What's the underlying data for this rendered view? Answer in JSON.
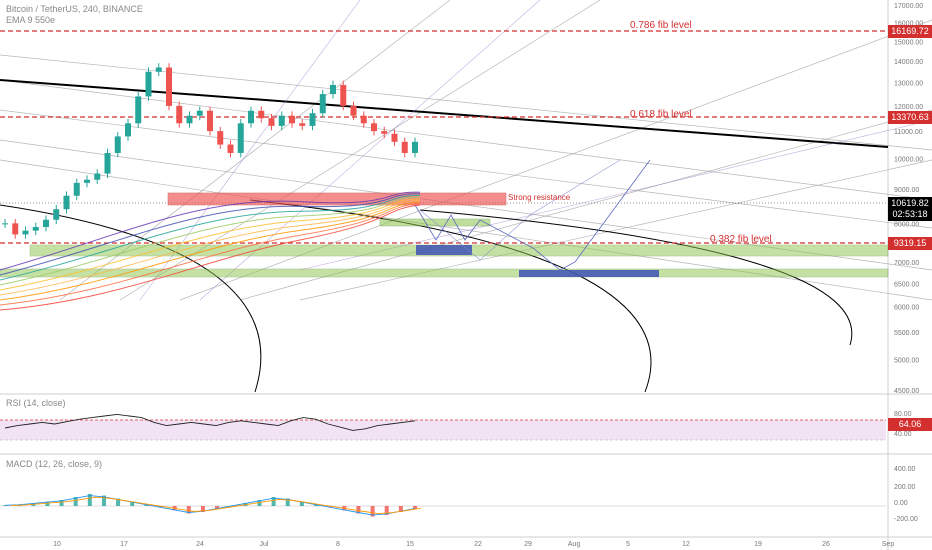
{
  "header": {
    "symbol_line": "Bitcoin / TetherUS, 240, BINANCE",
    "ma_line": "EMA 9 550e"
  },
  "annotations": {
    "fib_786": "0.786 fib level",
    "fib_618": "0.618 fib level",
    "fib_382": "0.382 fib level",
    "strong_resistance": "Strong resistance"
  },
  "price_tags": {
    "fib_786": "16169.72",
    "fib_618": "13370.63",
    "current_price": "10619.82",
    "countdown": "02:53:18",
    "fib_382": "9319.15",
    "rsi_value": "64.06"
  },
  "indicators": {
    "rsi_label": "RSI (14, close)",
    "macd_label": "MACD (12, 26, close, 9)"
  },
  "colors": {
    "fib_line": "#d32f2f",
    "resistance_zone": "#ef5350",
    "support_zone": "#8bc34a",
    "target_box": "#3f51b5",
    "rsi_band": "#e1bee7",
    "candle_up": "#26a69a",
    "candle_down": "#ef5350",
    "current_price_tag": "#000000"
  },
  "chart_data": [
    {
      "type": "candlestick",
      "title": "Bitcoin / TetherUS, 240, BINANCE",
      "y_axis_ticks": [
        "17000.00",
        "16000.00",
        "15000.00",
        "14000.00",
        "13000.00",
        "12000.00",
        "11000.00",
        "10000.00",
        "9000.00",
        "8000.00",
        "7500.00",
        "7000.00",
        "6500.00",
        "6000.00",
        "5500.00",
        "5000.00",
        "4500.00"
      ],
      "x_axis_ticks": [
        "10",
        "17",
        "24",
        "Jul",
        "8",
        "15",
        "22",
        "29",
        "Aug",
        "5",
        "12",
        "19",
        "26",
        "Sep"
      ],
      "approx_close_series": [
        8000,
        7700,
        7800,
        7900,
        8100,
        8400,
        8800,
        9200,
        9300,
        9500,
        10200,
        10800,
        11300,
        12400,
        13500,
        13700,
        12000,
        11300,
        11600,
        11800,
        11000,
        10500,
        10200,
        11300,
        11800,
        11500,
        11200,
        11600,
        11300,
        11200,
        11700,
        12500,
        12900,
        12000,
        11600,
        11300,
        11000,
        10900,
        10600,
        10200,
        10600
      ],
      "horizontal_levels": [
        {
          "label": "0.786 fib level",
          "value": 16169.72
        },
        {
          "label": "0.618 fib level",
          "value": 13370.63
        },
        {
          "label": "0.382 fib level",
          "value": 9319.15
        }
      ],
      "zones": [
        {
          "label": "Strong resistance",
          "from": 10500,
          "to": 10900
        }
      ]
    },
    {
      "type": "line",
      "title": "RSI (14, close)",
      "y_axis_ticks": [
        "80.00",
        "40.00"
      ],
      "band": [
        40,
        70
      ],
      "approx_values": [
        55,
        58,
        60,
        62,
        60,
        63,
        66,
        68,
        70,
        72,
        70,
        68,
        62,
        58,
        60,
        62,
        60,
        58,
        62,
        64,
        62,
        60,
        58,
        64,
        68,
        66,
        60,
        56,
        52,
        54,
        58,
        60,
        62,
        64
      ],
      "last_value": 64.06
    },
    {
      "type": "bar",
      "title": "MACD (12, 26, close, 9)",
      "y_axis_ticks": [
        "400.00",
        "200.00",
        "0.00",
        "-200.00",
        "-400.00"
      ],
      "approx_histogram": [
        10,
        20,
        40,
        60,
        80,
        120,
        160,
        140,
        100,
        60,
        20,
        -20,
        -60,
        -100,
        -80,
        -40,
        0,
        40,
        80,
        120,
        100,
        60,
        20,
        -20,
        -60,
        -100,
        -140,
        -120,
        -80,
        -40
      ]
    }
  ]
}
